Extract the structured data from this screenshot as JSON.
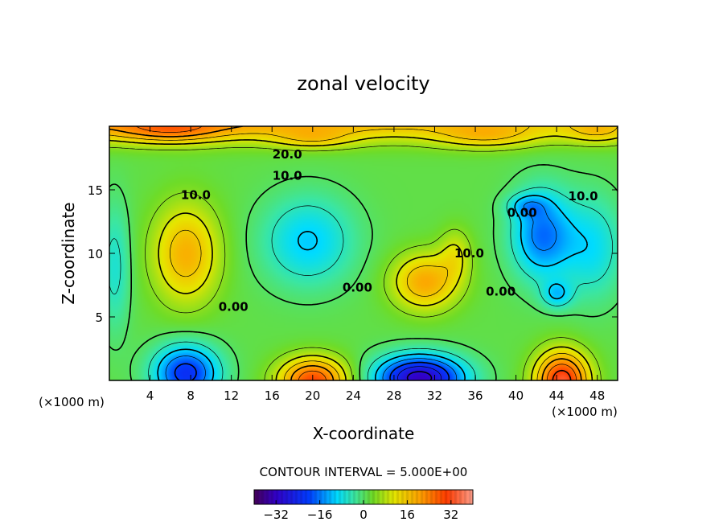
{
  "chart_data": {
    "type": "heatmap",
    "title": "zonal velocity",
    "xlabel": "X-coordinate",
    "ylabel": "Z-coordinate",
    "x_units": "(×1000 m)",
    "z_units": "(×1000 m)",
    "xlim": [
      0,
      50
    ],
    "ylim": [
      0,
      20
    ],
    "x_ticks": [
      4,
      8,
      12,
      16,
      20,
      24,
      28,
      32,
      36,
      40,
      44,
      48
    ],
    "y_ticks": [
      5,
      10,
      15
    ],
    "contour_interval_text": "CONTOUR INTERVAL = 5.000E+00",
    "colorbar": {
      "range": [
        -40,
        40
      ],
      "ticks": [
        -32,
        -16,
        0,
        16,
        32
      ],
      "tick_labels": [
        "−32",
        "−16",
        "0",
        "16",
        "32"
      ]
    },
    "contour_labels": [
      {
        "text": "20.0",
        "x": 17.5,
        "z": 17.8
      },
      {
        "text": "10.0",
        "x": 17.5,
        "z": 16.1
      },
      {
        "text": "10.0",
        "x": 8.5,
        "z": 14.6
      },
      {
        "text": "0.00",
        "x": 12.2,
        "z": 5.8
      },
      {
        "text": "0.00",
        "x": 24.4,
        "z": 7.3
      },
      {
        "text": "10.0",
        "x": 35.4,
        "z": 10.0
      },
      {
        "text": "0.00",
        "x": 38.5,
        "z": 7.0
      },
      {
        "text": "0.00",
        "x": 40.6,
        "z": 13.2
      },
      {
        "text": "10.0",
        "x": 46.6,
        "z": 14.5
      }
    ],
    "features": [
      {
        "x": 0,
        "z": 20.5,
        "sx": 60,
        "sz": 1.6,
        "v": 20
      },
      {
        "x": 6,
        "z": 19.6,
        "sx": 5,
        "sz": 1.0,
        "v": 10
      },
      {
        "x": 20,
        "z": 19.0,
        "sx": 4,
        "sz": 0.8,
        "v": 8
      },
      {
        "x": 37,
        "z": 19.2,
        "sx": 5,
        "sz": 1.0,
        "v": 9
      },
      {
        "x": 48,
        "z": 19.6,
        "sx": 3,
        "sz": 1.0,
        "v": 8
      },
      {
        "x": 7.5,
        "z": 10.0,
        "sx": 3.2,
        "sz": 3.8,
        "v": 17
      },
      {
        "x": 19.5,
        "z": 11.0,
        "sx": 4.5,
        "sz": 3.5,
        "v": -12
      },
      {
        "x": 31.0,
        "z": 7.8,
        "sx": 3.2,
        "sz": 2.2,
        "v": 18
      },
      {
        "x": 34.0,
        "z": 10.0,
        "sx": 1.6,
        "sz": 2.0,
        "v": 8
      },
      {
        "x": 42.5,
        "z": 11.5,
        "sx": 3.0,
        "sz": 3.5,
        "v": -18
      },
      {
        "x": 44.0,
        "z": 6.8,
        "sx": 1.5,
        "sz": 1.1,
        "v": -10
      },
      {
        "x": 41.0,
        "z": 13.8,
        "sx": 2.0,
        "sz": 0.9,
        "v": -8
      },
      {
        "x": 47.5,
        "z": 10.5,
        "sx": 3.0,
        "sz": 4.0,
        "v": -10
      },
      {
        "x": 0.5,
        "z": 9.0,
        "sx": 1.5,
        "sz": 5.0,
        "v": -8
      },
      {
        "x": 7.5,
        "z": 0.6,
        "sx": 3.2,
        "sz": 2.2,
        "v": -24
      },
      {
        "x": 20.0,
        "z": 0.0,
        "sx": 3.3,
        "sz": 1.8,
        "v": 28
      },
      {
        "x": 30.5,
        "z": 0.2,
        "sx": 4.3,
        "sz": 1.8,
        "v": -34
      },
      {
        "x": 44.5,
        "z": 0.0,
        "sx": 2.6,
        "sz": 2.3,
        "v": 32
      }
    ]
  }
}
